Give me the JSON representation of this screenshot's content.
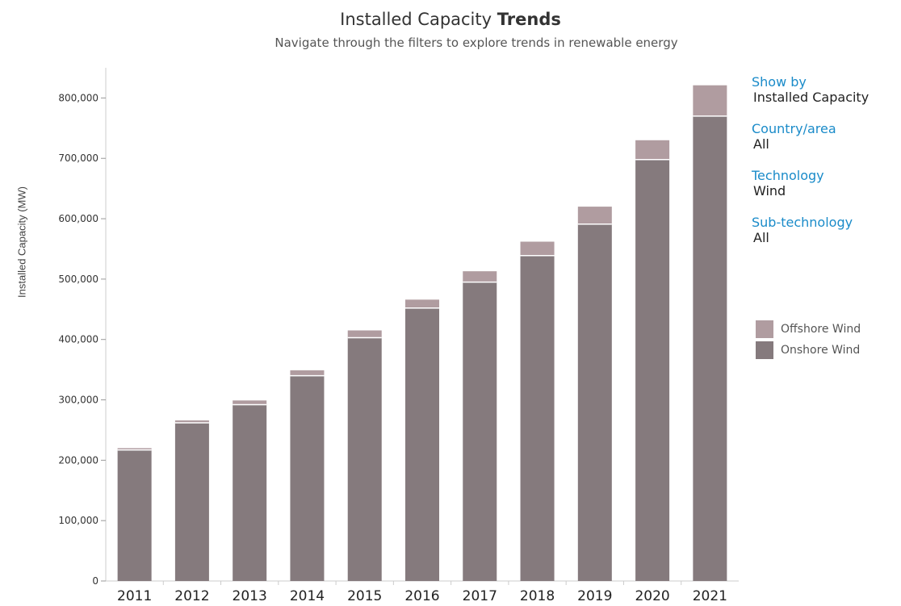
{
  "header": {
    "title_regular": "Installed Capacity",
    "title_bold": "Trends",
    "subtitle": "Navigate through the filters to explore trends in renewable energy"
  },
  "filters": [
    {
      "label": "Show by",
      "value": "Installed Capacity"
    },
    {
      "label": "Country/area",
      "value": "All"
    },
    {
      "label": "Technology",
      "value": "Wind"
    },
    {
      "label": "Sub-technology",
      "value": "All"
    }
  ],
  "colors": {
    "offshore": "#b09ca0",
    "onshore": "#857a7d",
    "axis": "#cccccc",
    "accent": "#1a8bc9"
  },
  "chart_data": {
    "type": "bar",
    "stacked": true,
    "title": "Installed Capacity Trends",
    "subtitle": "Navigate through the filters to explore trends in renewable energy",
    "xlabel": "",
    "ylabel": "Installed Capacity (MW)",
    "categories": [
      "2011",
      "2012",
      "2013",
      "2014",
      "2015",
      "2016",
      "2017",
      "2018",
      "2019",
      "2020",
      "2021"
    ],
    "series": [
      {
        "name": "Onshore Wind",
        "values": [
          217000,
          262000,
          292000,
          340000,
          403000,
          452000,
          495000,
          539000,
          591000,
          698000,
          770000
        ]
      },
      {
        "name": "Offshore Wind",
        "values": [
          3000,
          4000,
          7000,
          9000,
          12000,
          14000,
          18000,
          23000,
          29000,
          32000,
          51000
        ]
      }
    ],
    "ylim": [
      0,
      850000
    ],
    "yticks": [
      0,
      100000,
      200000,
      300000,
      400000,
      500000,
      600000,
      700000,
      800000
    ],
    "ytick_labels": [
      "0",
      "100,000",
      "200,000",
      "300,000",
      "400,000",
      "500,000",
      "600,000",
      "700,000",
      "800,000"
    ],
    "grid": false,
    "legend_position": "right"
  }
}
